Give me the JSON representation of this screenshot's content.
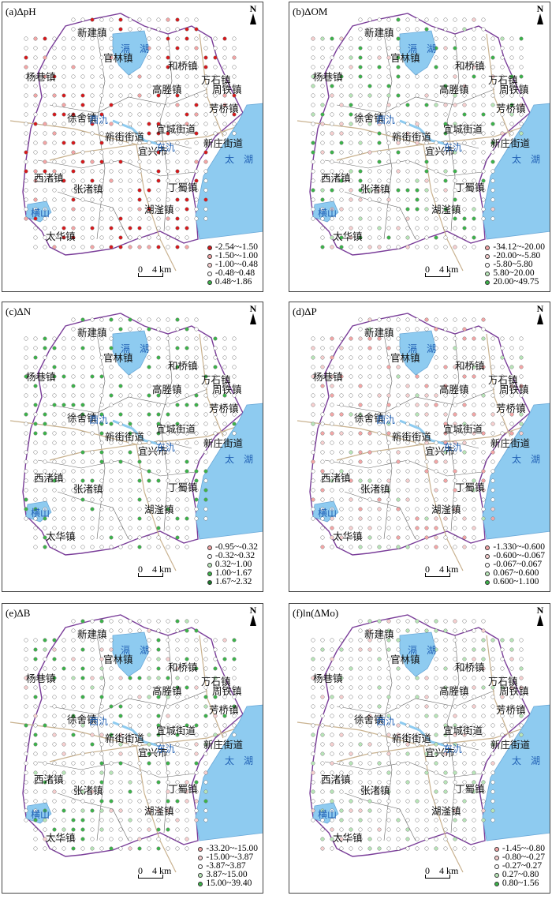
{
  "panels": [
    {
      "title": "(a)ΔpH",
      "legend": [
        {
          "label": "-2.54~-1.50",
          "color": "#d7191c"
        },
        {
          "label": "-1.50~-1.00",
          "color": "#f4a6a6"
        },
        {
          "label": "-1.00~-0.48",
          "color": "#f7d0d0"
        },
        {
          "label": "-0.48~0.48",
          "color": "#ffffff"
        },
        {
          "label": "0.48~1.86",
          "color": "#3cb34a"
        }
      ],
      "dense_color": "#d7191c"
    },
    {
      "title": "(b)ΔOM",
      "legend": [
        {
          "label": "-34.12~-20.00",
          "color": "#f4a6a6"
        },
        {
          "label": "-20.00~-5.80",
          "color": "#f7d0d0"
        },
        {
          "label": "-5.80~5.80",
          "color": "#ffffff"
        },
        {
          "label": "5.80~20.00",
          "color": "#b8e6b8"
        },
        {
          "label": "20.00~49.75",
          "color": "#3cb34a"
        }
      ],
      "dense_color": "#3cb34a"
    },
    {
      "title": "(c)ΔN",
      "legend": [
        {
          "label": "-0.95~-0.32",
          "color": "#f4a6a6"
        },
        {
          "label": "-0.32~0.32",
          "color": "#ffffff"
        },
        {
          "label": "0.32~1.00",
          "color": "#b8e6b8"
        },
        {
          "label": "1.00~1.67",
          "color": "#3cb34a"
        },
        {
          "label": "1.67~2.32",
          "color": "#1a7a2a"
        }
      ],
      "dense_color": "#3cb34a"
    },
    {
      "title": "(d)ΔP",
      "legend": [
        {
          "label": "-1.330~-0.600",
          "color": "#f4a6a6"
        },
        {
          "label": "-0.600~-0.067",
          "color": "#f7d0d0"
        },
        {
          "label": "-0.067~0.067",
          "color": "#ffffff"
        },
        {
          "label": "0.067~0.600",
          "color": "#b8e6b8"
        },
        {
          "label": "0.600~1.100",
          "color": "#3cb34a"
        }
      ],
      "dense_color": "#f4a6a6"
    },
    {
      "title": "(e)ΔB",
      "legend": [
        {
          "label": "-33.20~-15.00",
          "color": "#f4a6a6"
        },
        {
          "label": "-15.00~-3.87",
          "color": "#f7d0d0"
        },
        {
          "label": "-3.87~3.87",
          "color": "#ffffff"
        },
        {
          "label": "3.87~15.00",
          "color": "#b8e6b8"
        },
        {
          "label": "15.00~39.40",
          "color": "#3cb34a"
        }
      ],
      "dense_color": "#3cb34a"
    },
    {
      "title": "(f)ln(ΔMo)",
      "legend": [
        {
          "label": "-1.45~-0.80",
          "color": "#f4a6a6"
        },
        {
          "label": "-0.80~-0.27",
          "color": "#f7d0d0"
        },
        {
          "label": "-0.27~0.27",
          "color": "#ffffff"
        },
        {
          "label": "0.27~0.80",
          "color": "#b8e6b8"
        },
        {
          "label": "0.80~1.56",
          "color": "#3cb34a"
        }
      ],
      "dense_color": "#b8e6b8"
    }
  ],
  "towns": [
    "新建镇",
    "官林镇",
    "和桥镇",
    "杨巷镇",
    "万石镇",
    "高塍镇",
    "周铁镇",
    "芳桥镇",
    "徐舍镇",
    "宜城街道",
    "新街街道",
    "新庄街道",
    "宜兴市",
    "西渚镇",
    "张渚镇",
    "丁蜀镇",
    "湖滏镇",
    "太华镇"
  ],
  "lakes": {
    "ge": "滆　湖",
    "taihu": "太　湖",
    "xi": "西氿",
    "dong": "东氿",
    "hengshan": "横山"
  },
  "north": "N",
  "scale": "0　4 km"
}
